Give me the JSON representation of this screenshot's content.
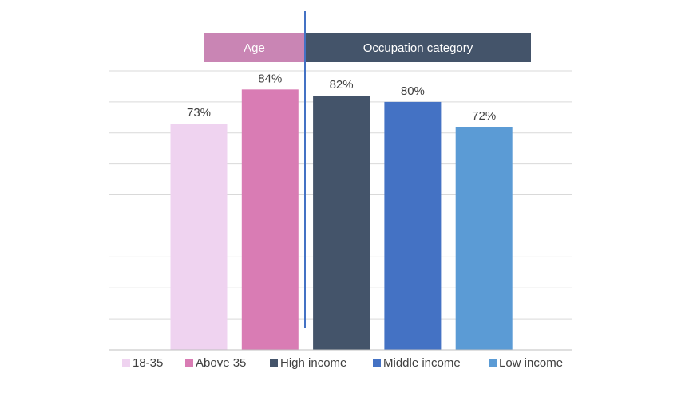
{
  "chart_data": {
    "type": "bar",
    "categories": [
      "18-35",
      "Above 35",
      "High income",
      "Middle income",
      "Low income"
    ],
    "values": [
      73,
      84,
      82,
      80,
      72
    ],
    "value_labels": [
      "73%",
      "84%",
      "82%",
      "80%",
      "72%"
    ],
    "ylim": [
      0,
      90
    ],
    "grid": true,
    "legend_position": "bottom",
    "colors": [
      "#EFD3F0",
      "#D97CB4",
      "#44546A",
      "#4472C4",
      "#5B9BD5"
    ],
    "groups": [
      {
        "label": "Age",
        "color": "#C985B4",
        "categories": [
          "18-35",
          "Above 35"
        ]
      },
      {
        "label": "Occupation category",
        "color": "#44546A",
        "categories": [
          "High income",
          "Middle income",
          "Low income"
        ]
      }
    ],
    "divider_color": "#4472C4"
  }
}
